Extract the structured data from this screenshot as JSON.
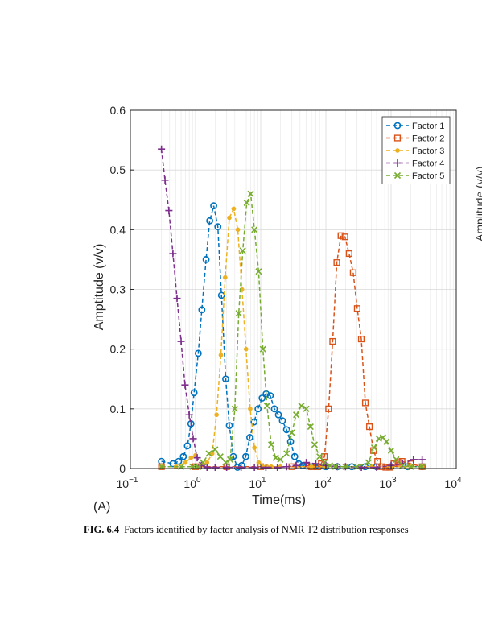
{
  "panel_label": "(A)",
  "caption": {
    "label": "FIG. 6.4",
    "text": "Factors identified by factor analysis of NMR T2 distribution responses"
  },
  "edge_text": "Amplitude (v/v)",
  "chart_data": {
    "type": "line",
    "xlabel": "Time(ms)",
    "ylabel": "Amptitude (v/v)",
    "xscale": "log",
    "xlim": [
      0.1,
      10000
    ],
    "ylim": [
      0,
      0.6
    ],
    "xticks": [
      {
        "value": 0.1,
        "base": "10",
        "exp": "−1"
      },
      {
        "value": 1,
        "base": "10",
        "exp": "0"
      },
      {
        "value": 10,
        "base": "10",
        "exp": "1"
      },
      {
        "value": 100,
        "base": "10",
        "exp": "2"
      },
      {
        "value": 1000,
        "base": "10",
        "exp": "3"
      },
      {
        "value": 10000,
        "base": "10",
        "exp": "4"
      }
    ],
    "yticks": [
      "0",
      "0.1",
      "0.2",
      "0.3",
      "0.4",
      "0.5",
      "0.6"
    ],
    "grid": true,
    "legend_position": "top-right",
    "series": [
      {
        "name": "Factor 1",
        "color": "#0072BD",
        "marker": "circle",
        "x": [
          0.3,
          0.45,
          0.55,
          0.65,
          0.75,
          0.85,
          0.95,
          1.1,
          1.25,
          1.45,
          1.65,
          1.9,
          2.2,
          2.5,
          2.9,
          3.3,
          3.8,
          4.4,
          5.1,
          5.9,
          6.8,
          7.9,
          9.1,
          10.5,
          12.1,
          14.0,
          16.2,
          18.7,
          21.5,
          24.9,
          28.7,
          33.2,
          38.3,
          44.2,
          51.1,
          59.0,
          68.1,
          78.6,
          100,
          150,
          250,
          400,
          600,
          1000,
          1800,
          3000
        ],
        "y": [
          0.012,
          0.008,
          0.012,
          0.02,
          0.038,
          0.075,
          0.127,
          0.193,
          0.266,
          0.35,
          0.415,
          0.44,
          0.405,
          0.29,
          0.15,
          0.072,
          0.02,
          0.002,
          0.005,
          0.02,
          0.052,
          0.078,
          0.1,
          0.118,
          0.125,
          0.122,
          0.1,
          0.09,
          0.08,
          0.065,
          0.045,
          0.02,
          0.008,
          0.005,
          0.004,
          0.003,
          0.003,
          0.003,
          0.003,
          0.003,
          0.003,
          0.003,
          0.003,
          0.003,
          0.003,
          0.003
        ]
      },
      {
        "name": "Factor 2",
        "color": "#D95319",
        "marker": "square",
        "x": [
          0.3,
          1,
          3,
          10,
          30,
          60,
          75,
          85,
          95,
          110,
          127,
          147,
          170,
          196,
          227,
          262,
          302,
          349,
          403,
          466,
          538,
          621,
          717,
          828,
          957,
          1105,
          1276,
          1474,
          2000,
          3000
        ],
        "y": [
          0.003,
          0.003,
          0.003,
          0.003,
          0.003,
          0.003,
          0.003,
          0.008,
          0.02,
          0.1,
          0.213,
          0.345,
          0.39,
          0.388,
          0.36,
          0.328,
          0.268,
          0.217,
          0.11,
          0.07,
          0.03,
          0.012,
          0.003,
          0.002,
          0.002,
          0.008,
          0.01,
          0.012,
          0.008,
          0.003
        ]
      },
      {
        "name": "Factor 3",
        "color": "#EDB120",
        "marker": "dot",
        "x": [
          0.3,
          0.5,
          0.7,
          0.85,
          1.0,
          1.2,
          1.5,
          1.8,
          2.1,
          2.45,
          2.85,
          3.3,
          3.85,
          4.45,
          5.15,
          5.95,
          6.9,
          8.0,
          9.3,
          10.8,
          12.5,
          14.5,
          20,
          35,
          60,
          100,
          200,
          500,
          1000,
          2000,
          3000
        ],
        "y": [
          0.003,
          0.003,
          0.01,
          0.018,
          0.022,
          0.005,
          0.01,
          0.025,
          0.09,
          0.19,
          0.32,
          0.42,
          0.435,
          0.4,
          0.3,
          0.2,
          0.1,
          0.035,
          0.01,
          0.003,
          0.003,
          0.003,
          0.003,
          0.003,
          0.003,
          0.003,
          0.003,
          0.003,
          0.003,
          0.003,
          0.003
        ]
      },
      {
        "name": "Factor 4",
        "color": "#7E2F8E",
        "marker": "plus",
        "x": [
          0.3,
          0.34,
          0.39,
          0.45,
          0.52,
          0.6,
          0.69,
          0.8,
          0.92,
          1.06,
          1.23,
          1.5,
          2,
          3,
          5,
          8,
          12,
          18,
          25,
          35,
          50,
          70,
          100,
          150,
          200,
          350,
          600,
          1000,
          1500,
          2200,
          3000
        ],
        "y": [
          0.535,
          0.483,
          0.432,
          0.36,
          0.285,
          0.213,
          0.14,
          0.09,
          0.05,
          0.018,
          0.005,
          0.002,
          0.002,
          0.002,
          0.002,
          0.002,
          0.002,
          0.002,
          0.003,
          0.005,
          0.01,
          0.008,
          0.005,
          0.003,
          0.003,
          0.002,
          0.002,
          0.005,
          0.008,
          0.015,
          0.015
        ]
      },
      {
        "name": "Factor 5",
        "color": "#77AC30",
        "marker": "x",
        "x": [
          0.3,
          0.6,
          0.9,
          1.1,
          1.3,
          1.6,
          2.0,
          2.4,
          2.9,
          3.4,
          4.0,
          4.6,
          5.3,
          6.1,
          7.0,
          8.0,
          9.3,
          10.8,
          12.5,
          14.5,
          17,
          20,
          25,
          30,
          35,
          42,
          50,
          58,
          67,
          80,
          95,
          115,
          140,
          200,
          300,
          450,
          550,
          650,
          750,
          850,
          1000,
          1200,
          1500,
          2000,
          3000
        ],
        "y": [
          0.003,
          0.003,
          0.003,
          0.003,
          0.01,
          0.025,
          0.032,
          0.02,
          0.01,
          0.015,
          0.1,
          0.26,
          0.365,
          0.445,
          0.46,
          0.4,
          0.33,
          0.2,
          0.105,
          0.04,
          0.018,
          0.015,
          0.025,
          0.06,
          0.09,
          0.105,
          0.1,
          0.07,
          0.04,
          0.02,
          0.01,
          0.005,
          0.003,
          0.003,
          0.003,
          0.01,
          0.035,
          0.05,
          0.052,
          0.045,
          0.03,
          0.015,
          0.005,
          0.003,
          0.003
        ]
      }
    ]
  }
}
